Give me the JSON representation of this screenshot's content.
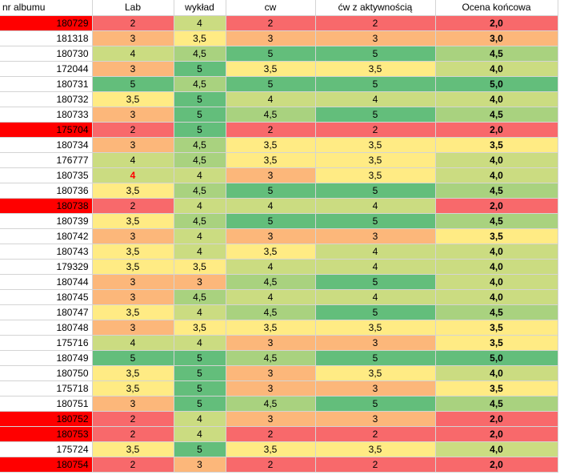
{
  "columns": [
    "nr albumu",
    "Lab",
    "wykład",
    "cw",
    "ćw z aktywnością",
    "Ocena końcowa"
  ],
  "colors": {
    "failed_id": "#ff0000",
    "grade_2": "#f8696b",
    "grade_3": "#fcb77a",
    "grade_3_5": "#ffeb84",
    "grade_4": "#cbdc81",
    "grade_4_5": "#a9d27f",
    "grade_5": "#63be7b",
    "highlight_text": "#ff0000"
  },
  "rows": [
    {
      "id": "180729",
      "lab": "2",
      "wyklad": "4",
      "cw": "2",
      "cw_akt": "2",
      "ocena": "2,0",
      "failed": true
    },
    {
      "id": "181318",
      "lab": "3",
      "wyklad": "3,5",
      "cw": "3",
      "cw_akt": "3",
      "ocena": "3,0",
      "failed": false
    },
    {
      "id": "180730",
      "lab": "4",
      "wyklad": "4,5",
      "cw": "5",
      "cw_akt": "5",
      "ocena": "4,5",
      "failed": false
    },
    {
      "id": "172044",
      "lab": "3",
      "wyklad": "5",
      "cw": "3,5",
      "cw_akt": "3,5",
      "ocena": "4,0",
      "failed": false
    },
    {
      "id": "180731",
      "lab": "5",
      "wyklad": "4,5",
      "cw": "5",
      "cw_akt": "5",
      "ocena": "5,0",
      "failed": false
    },
    {
      "id": "180732",
      "lab": "3,5",
      "wyklad": "5",
      "cw": "4",
      "cw_akt": "4",
      "ocena": "4,0",
      "failed": false
    },
    {
      "id": "180733",
      "lab": "3",
      "wyklad": "5",
      "cw": "4,5",
      "cw_akt": "5",
      "ocena": "4,5",
      "failed": false
    },
    {
      "id": "175704",
      "lab": "2",
      "wyklad": "5",
      "cw": "2",
      "cw_akt": "2",
      "ocena": "2,0",
      "failed": true
    },
    {
      "id": "180734",
      "lab": "3",
      "wyklad": "4,5",
      "cw": "3,5",
      "cw_akt": "3,5",
      "ocena": "3,5",
      "failed": false
    },
    {
      "id": "176777",
      "lab": "4",
      "wyklad": "4,5",
      "cw": "3,5",
      "cw_akt": "3,5",
      "ocena": "4,0",
      "failed": false
    },
    {
      "id": "180735",
      "lab": "4",
      "wyklad": "4",
      "cw": "3",
      "cw_akt": "3,5",
      "ocena": "4,0",
      "failed": false,
      "lab_red": true
    },
    {
      "id": "180736",
      "lab": "3,5",
      "wyklad": "4,5",
      "cw": "5",
      "cw_akt": "5",
      "ocena": "4,5",
      "failed": false
    },
    {
      "id": "180738",
      "lab": "2",
      "wyklad": "4",
      "cw": "4",
      "cw_akt": "4",
      "ocena": "2,0",
      "failed": true
    },
    {
      "id": "180739",
      "lab": "3,5",
      "wyklad": "4,5",
      "cw": "5",
      "cw_akt": "5",
      "ocena": "4,5",
      "failed": false
    },
    {
      "id": "180742",
      "lab": "3",
      "wyklad": "4",
      "cw": "3",
      "cw_akt": "3",
      "ocena": "3,5",
      "failed": false
    },
    {
      "id": "180743",
      "lab": "3,5",
      "wyklad": "4",
      "cw": "3,5",
      "cw_akt": "4",
      "ocena": "4,0",
      "failed": false
    },
    {
      "id": "179329",
      "lab": "3,5",
      "wyklad": "3,5",
      "cw": "4",
      "cw_akt": "4",
      "ocena": "4,0",
      "failed": false
    },
    {
      "id": "180744",
      "lab": "3",
      "wyklad": "3",
      "cw": "4,5",
      "cw_akt": "5",
      "ocena": "4,0",
      "failed": false
    },
    {
      "id": "180745",
      "lab": "3",
      "wyklad": "4,5",
      "cw": "4",
      "cw_akt": "4",
      "ocena": "4,0",
      "failed": false
    },
    {
      "id": "180747",
      "lab": "3,5",
      "wyklad": "4",
      "cw": "4,5",
      "cw_akt": "5",
      "ocena": "4,5",
      "failed": false
    },
    {
      "id": "180748",
      "lab": "3",
      "wyklad": "3,5",
      "cw": "3,5",
      "cw_akt": "3,5",
      "ocena": "3,5",
      "failed": false
    },
    {
      "id": "175716",
      "lab": "4",
      "wyklad": "4",
      "cw": "3",
      "cw_akt": "3",
      "ocena": "3,5",
      "failed": false
    },
    {
      "id": "180749",
      "lab": "5",
      "wyklad": "5",
      "cw": "4,5",
      "cw_akt": "5",
      "ocena": "5,0",
      "failed": false
    },
    {
      "id": "180750",
      "lab": "3,5",
      "wyklad": "5",
      "cw": "3",
      "cw_akt": "3,5",
      "ocena": "4,0",
      "failed": false
    },
    {
      "id": "175718",
      "lab": "3,5",
      "wyklad": "5",
      "cw": "3",
      "cw_akt": "3",
      "ocena": "3,5",
      "failed": false
    },
    {
      "id": "180751",
      "lab": "3",
      "wyklad": "5",
      "cw": "4,5",
      "cw_akt": "5",
      "ocena": "4,5",
      "failed": false
    },
    {
      "id": "180752",
      "lab": "2",
      "wyklad": "4",
      "cw": "3",
      "cw_akt": "3",
      "ocena": "2,0",
      "failed": true
    },
    {
      "id": "180753",
      "lab": "2",
      "wyklad": "4",
      "cw": "2",
      "cw_akt": "2",
      "ocena": "2,0",
      "failed": true
    },
    {
      "id": "175724",
      "lab": "3,5",
      "wyklad": "5",
      "cw": "3,5",
      "cw_akt": "3,5",
      "ocena": "4,0",
      "failed": false
    },
    {
      "id": "180754",
      "lab": "2",
      "wyklad": "3",
      "cw": "2",
      "cw_akt": "2",
      "ocena": "2,0",
      "failed": true
    }
  ]
}
